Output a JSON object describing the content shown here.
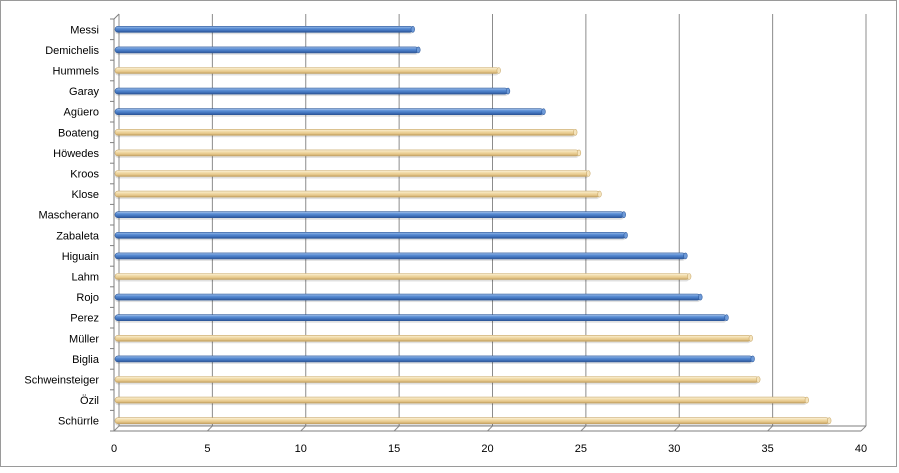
{
  "chart_data": {
    "type": "bar",
    "orientation": "horizontal",
    "title": "",
    "xlabel": "",
    "ylabel": "",
    "xlim": [
      0,
      40
    ],
    "x_ticks": [
      "0",
      "5",
      "10",
      "15",
      "20",
      "25",
      "30",
      "35",
      "40"
    ],
    "grid": "vertical major gridlines",
    "legend": "none",
    "style": "3d-cylinder",
    "colors": {
      "blue": "#4a7bc0",
      "blue_dark": "#2e5a9c",
      "tan": "#f0d9a8",
      "tan_dark": "#c9a96a",
      "grid": "#8c8c8c",
      "axis": "#7f7f7f"
    },
    "categories": [
      "Messi",
      "Demichelis",
      "Hummels",
      "Garay",
      "Agüero",
      "Boateng",
      "Höwedes",
      "Kroos",
      "Klose",
      "Mascherano",
      "Zabaleta",
      "Higuain",
      "Lahm",
      "Rojo",
      "Perez",
      "Müller",
      "Biglia",
      "Schweinsteiger",
      "Özil",
      "Schürrle"
    ],
    "values": [
      16.0,
      16.3,
      20.6,
      21.1,
      23.0,
      24.7,
      24.9,
      25.4,
      26.0,
      27.3,
      27.4,
      30.6,
      30.8,
      31.4,
      32.8,
      34.1,
      34.2,
      34.5,
      37.1,
      38.3
    ],
    "bar_colors": [
      "blue",
      "blue",
      "tan",
      "blue",
      "blue",
      "tan",
      "tan",
      "tan",
      "tan",
      "blue",
      "blue",
      "blue",
      "tan",
      "blue",
      "blue",
      "tan",
      "blue",
      "tan",
      "tan",
      "tan"
    ]
  }
}
